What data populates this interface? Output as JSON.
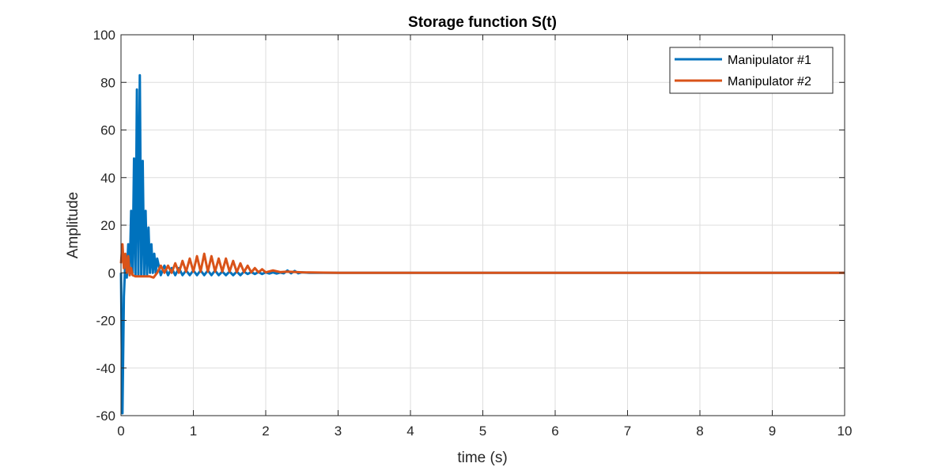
{
  "chart_data": {
    "type": "line",
    "title": "Storage function S(t)",
    "xlabel": "time (s)",
    "ylabel": "Amplitude",
    "xlim": [
      0,
      10
    ],
    "ylim": [
      -60,
      100
    ],
    "xticks": [
      0,
      1,
      2,
      3,
      4,
      5,
      6,
      7,
      8,
      9,
      10
    ],
    "yticks": [
      -60,
      -40,
      -20,
      0,
      20,
      40,
      60,
      80,
      100
    ],
    "xtick_labels": [
      "0",
      "1",
      "2",
      "3",
      "4",
      "5",
      "6",
      "7",
      "8",
      "9",
      "10"
    ],
    "ytick_labels": [
      "-60",
      "-40",
      "-20",
      "0",
      "20",
      "40",
      "60",
      "80",
      "100"
    ],
    "grid": true,
    "legend_position": "top-right",
    "series": [
      {
        "name": "Manipulator #1",
        "color": "#0072BD",
        "x": [
          0,
          0.02,
          0.04,
          0.06,
          0.08,
          0.1,
          0.12,
          0.14,
          0.16,
          0.18,
          0.2,
          0.22,
          0.24,
          0.26,
          0.28,
          0.3,
          0.32,
          0.34,
          0.36,
          0.38,
          0.4,
          0.42,
          0.44,
          0.46,
          0.48,
          0.5,
          0.55,
          0.6,
          0.65,
          0.7,
          0.75,
          0.8,
          0.85,
          0.9,
          0.95,
          1.0,
          1.05,
          1.1,
          1.15,
          1.2,
          1.25,
          1.3,
          1.35,
          1.4,
          1.45,
          1.5,
          1.55,
          1.6,
          1.65,
          1.7,
          1.75,
          1.8,
          1.85,
          1.9,
          1.95,
          2.0,
          2.05,
          2.1,
          2.15,
          2.2,
          2.25,
          2.3,
          2.35,
          2.4,
          2.45,
          2.5,
          2.6,
          2.8,
          3.0,
          4.0,
          5.0,
          6.0,
          7.0,
          8.0,
          9.0,
          10.0
        ],
        "y": [
          0,
          -59,
          -10,
          5,
          -2,
          12,
          -1,
          26,
          0,
          48,
          -1,
          77,
          -1,
          83,
          -1,
          47,
          -1,
          26,
          -1,
          19,
          0,
          12,
          0,
          8,
          0,
          6,
          -1,
          3,
          -1,
          2,
          -1,
          2,
          -1,
          1,
          -1,
          1,
          -1,
          1,
          -1,
          1,
          -1,
          1,
          -1,
          0.5,
          -1,
          0.5,
          -1,
          0.5,
          -1,
          0.5,
          -0.5,
          0.3,
          -0.5,
          0.3,
          -0.5,
          0.2,
          -0.3,
          0.2,
          -0.3,
          0.1,
          -0.2,
          1,
          -0.2,
          0.8,
          -0.2,
          0.2,
          0,
          0,
          0,
          0,
          0,
          0,
          0,
          0,
          0,
          0
        ]
      },
      {
        "name": "Manipulator #2",
        "color": "#D95319",
        "x": [
          0,
          0.02,
          0.04,
          0.06,
          0.08,
          0.1,
          0.12,
          0.14,
          0.16,
          0.2,
          0.3,
          0.4,
          0.45,
          0.5,
          0.55,
          0.6,
          0.65,
          0.7,
          0.75,
          0.8,
          0.85,
          0.9,
          0.95,
          1.0,
          1.05,
          1.1,
          1.15,
          1.2,
          1.25,
          1.3,
          1.35,
          1.4,
          1.45,
          1.5,
          1.55,
          1.6,
          1.65,
          1.7,
          1.75,
          1.8,
          1.85,
          1.9,
          1.95,
          2.0,
          2.1,
          2.2,
          2.3,
          2.5,
          3.0,
          4.0,
          5.0,
          6.0,
          7.0,
          8.0,
          9.0,
          10.0
        ],
        "y": [
          4,
          12,
          2,
          8,
          0,
          7,
          -1,
          2,
          -1,
          -1.5,
          -1.5,
          -1.5,
          -2,
          0,
          3,
          0,
          3,
          0,
          4,
          0,
          5,
          0.5,
          6,
          0.5,
          7,
          0.5,
          8,
          0.5,
          7,
          0.5,
          6,
          0.5,
          6,
          0.5,
          5,
          0.3,
          4,
          0.3,
          3,
          0.2,
          2,
          0.2,
          1.5,
          0.2,
          1,
          0.3,
          0.5,
          0.2,
          0,
          0,
          0,
          0,
          0,
          0,
          0,
          0
        ]
      }
    ]
  }
}
